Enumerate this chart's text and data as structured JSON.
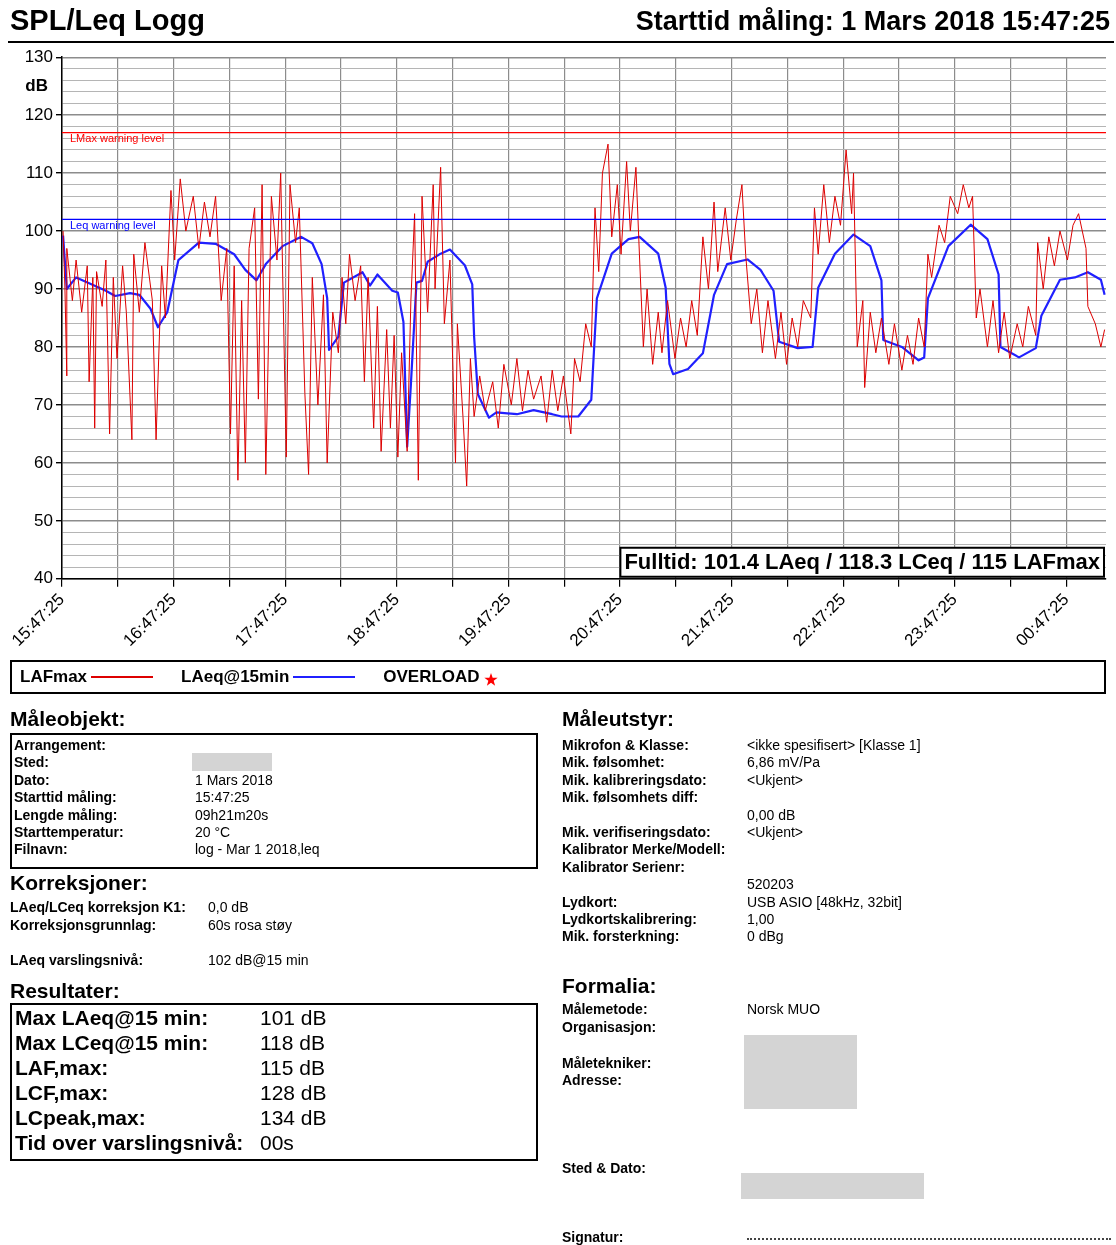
{
  "chart_data": {
    "type": "line",
    "title": "SPL/Leq Logg",
    "subtitle": "Starttid måling: 1 Mars 2018  15:47:25",
    "ylabel": "dB",
    "xlim": [
      "2018-03-01T15:47:25",
      "2018-03-02T01:08:45"
    ],
    "xticks": [
      {
        "value": "2018-03-01T15:47:25",
        "label": "15:47:25"
      },
      {
        "value": "2018-03-01T16:17:25",
        "label": null
      },
      {
        "value": "2018-03-01T16:47:25",
        "label": "16:47:25"
      },
      {
        "value": "2018-03-01T17:17:25",
        "label": null
      },
      {
        "value": "2018-03-01T17:47:25",
        "label": "17:47:25"
      },
      {
        "value": "2018-03-01T18:17:25",
        "label": null
      },
      {
        "value": "2018-03-01T18:47:25",
        "label": "18:47:25"
      },
      {
        "value": "2018-03-01T19:17:25",
        "label": null
      },
      {
        "value": "2018-03-01T19:47:25",
        "label": "19:47:25"
      },
      {
        "value": "2018-03-01T20:17:25",
        "label": null
      },
      {
        "value": "2018-03-01T20:47:25",
        "label": "20:47:25"
      },
      {
        "value": "2018-03-01T21:17:25",
        "label": null
      },
      {
        "value": "2018-03-01T21:47:25",
        "label": "21:47:25"
      },
      {
        "value": "2018-03-01T22:17:25",
        "label": null
      },
      {
        "value": "2018-03-01T22:47:25",
        "label": "22:47:25"
      },
      {
        "value": "2018-03-01T23:17:25",
        "label": null
      },
      {
        "value": "2018-03-01T23:47:25",
        "label": "23:47:25"
      },
      {
        "value": "2018-03-02T00:17:25",
        "label": null
      },
      {
        "value": "2018-03-02T00:47:25",
        "label": "00:47:25"
      }
    ],
    "ylim": [
      40,
      130
    ],
    "yticks": [
      40,
      {
        "value": 42,
        "label": null
      },
      {
        "value": 44,
        "label": null
      },
      {
        "value": 46,
        "label": null
      },
      {
        "value": 48,
        "label": null
      },
      50,
      {
        "value": 52,
        "label": null
      },
      {
        "value": 54,
        "label": null
      },
      {
        "value": 56,
        "label": null
      },
      {
        "value": 58,
        "label": null
      },
      60,
      {
        "value": 62,
        "label": null
      },
      {
        "value": 64,
        "label": null
      },
      {
        "value": 66,
        "label": null
      },
      {
        "value": 68,
        "label": null
      },
      70,
      {
        "value": 72,
        "label": null
      },
      {
        "value": 74,
        "label": null
      },
      {
        "value": 76,
        "label": null
      },
      {
        "value": 78,
        "label": null
      },
      80,
      {
        "value": 82,
        "label": null
      },
      {
        "value": 84,
        "label": null
      },
      {
        "value": 86,
        "label": null
      },
      {
        "value": 88,
        "label": null
      },
      90,
      {
        "value": 92,
        "label": null
      },
      {
        "value": 94,
        "label": null
      },
      {
        "value": 96,
        "label": null
      },
      {
        "value": 98,
        "label": null
      },
      100,
      {
        "value": 102,
        "label": null
      },
      {
        "value": 104,
        "label": null
      },
      {
        "value": 106,
        "label": null
      },
      {
        "value": 108,
        "label": null
      },
      110,
      {
        "value": 112,
        "label": null
      },
      {
        "value": 114,
        "label": null
      },
      {
        "value": 116,
        "label": null
      },
      {
        "value": 118,
        "label": null
      },
      120,
      {
        "value": 122,
        "label": null
      },
      {
        "value": 124,
        "label": null
      },
      {
        "value": 126,
        "label": null
      },
      {
        "value": 128,
        "label": null
      },
      130
    ],
    "grid": true,
    "legend": "bottom",
    "ref_lines": [
      {
        "axis": "y",
        "value": 117,
        "label": "LMax warning level",
        "color": "#ff0000"
      },
      {
        "axis": "y",
        "value": 102,
        "label": "Leq warning level",
        "color": "#0000ff"
      }
    ],
    "series": [
      {
        "name": "LAFmax",
        "color": "#dd0000",
        "x": [
          "2018-03-01T15:48",
          "2018-03-01T15:49",
          "2018-03-01T15:50",
          "2018-03-01T15:50",
          "2018-03-01T15:53",
          "2018-03-01T15:55",
          "2018-03-01T15:58",
          "2018-03-01T16:01",
          "2018-03-01T16:02",
          "2018-03-01T16:04",
          "2018-03-01T16:05",
          "2018-03-01T16:06",
          "2018-03-01T16:09",
          "2018-03-01T16:11",
          "2018-03-01T16:13",
          "2018-03-01T16:15",
          "2018-03-01T16:17",
          "2018-03-01T16:20",
          "2018-03-01T16:22",
          "2018-03-01T16:25",
          "2018-03-01T16:26",
          "2018-03-01T16:29",
          "2018-03-01T16:32",
          "2018-03-01T16:36",
          "2018-03-01T16:38",
          "2018-03-01T16:41",
          "2018-03-01T16:43",
          "2018-03-01T16:46",
          "2018-03-01T16:48",
          "2018-03-01T16:51",
          "2018-03-01T16:54",
          "2018-03-01T16:58",
          "2018-03-01T17:01",
          "2018-03-01T17:04",
          "2018-03-01T17:07",
          "2018-03-01T17:10",
          "2018-03-01T17:13",
          "2018-03-01T17:16",
          "2018-03-01T17:18",
          "2018-03-01T17:20",
          "2018-03-01T17:22",
          "2018-03-01T17:24",
          "2018-03-01T17:26",
          "2018-03-01T17:28",
          "2018-03-01T17:31",
          "2018-03-01T17:33",
          "2018-03-01T17:35",
          "2018-03-01T17:37",
          "2018-03-01T17:40",
          "2018-03-01T17:43",
          "2018-03-01T17:45",
          "2018-03-01T17:48",
          "2018-03-01T17:50",
          "2018-03-01T17:53",
          "2018-03-01T17:55",
          "2018-03-01T17:58",
          "2018-03-01T18:00",
          "2018-03-01T18:02",
          "2018-03-01T18:05",
          "2018-03-01T18:08",
          "2018-03-01T18:10",
          "2018-03-01T18:13",
          "2018-03-01T18:16",
          "2018-03-01T18:18",
          "2018-03-01T18:20",
          "2018-03-01T18:22",
          "2018-03-01T18:25",
          "2018-03-01T18:28",
          "2018-03-01T18:30",
          "2018-03-01T18:32",
          "2018-03-01T18:35",
          "2018-03-01T18:37",
          "2018-03-01T18:39",
          "2018-03-01T18:42",
          "2018-03-01T18:44",
          "2018-03-01T18:46",
          "2018-03-01T18:48",
          "2018-03-01T18:50",
          "2018-03-01T18:53",
          "2018-03-01T18:55",
          "2018-03-01T18:57",
          "2018-03-01T18:59",
          "2018-03-01T19:01",
          "2018-03-01T19:04",
          "2018-03-01T19:07",
          "2018-03-01T19:08",
          "2018-03-01T19:11",
          "2018-03-01T19:13",
          "2018-03-01T19:16",
          "2018-03-01T19:19",
          "2018-03-01T19:20",
          "2018-03-01T19:23",
          "2018-03-01T19:25",
          "2018-03-01T19:27",
          "2018-03-01T19:29",
          "2018-03-01T19:32",
          "2018-03-01T19:35",
          "2018-03-01T19:39",
          "2018-03-01T19:42",
          "2018-03-01T19:45",
          "2018-03-01T19:49",
          "2018-03-01T19:52",
          "2018-03-01T19:55",
          "2018-03-01T19:58",
          "2018-03-01T20:01",
          "2018-03-01T20:05",
          "2018-03-01T20:08",
          "2018-03-01T20:11",
          "2018-03-01T20:14",
          "2018-03-01T20:17",
          "2018-03-01T20:21",
          "2018-03-01T20:23",
          "2018-03-01T20:26",
          "2018-03-01T20:29",
          "2018-03-01T20:32",
          "2018-03-01T20:34",
          "2018-03-01T20:36",
          "2018-03-01T20:38",
          "2018-03-01T20:41",
          "2018-03-01T20:43",
          "2018-03-01T20:46",
          "2018-03-01T20:48",
          "2018-03-01T20:51",
          "2018-03-01T20:53",
          "2018-03-01T20:56",
          "2018-03-01T20:58",
          "2018-03-01T21:00",
          "2018-03-01T21:02",
          "2018-03-01T21:05",
          "2018-03-01T21:08",
          "2018-03-01T21:10",
          "2018-03-01T21:13",
          "2018-03-01T21:17",
          "2018-03-01T21:20",
          "2018-03-01T21:23",
          "2018-03-01T21:26",
          "2018-03-01T21:29",
          "2018-03-01T21:32",
          "2018-03-01T21:35",
          "2018-03-01T21:38",
          "2018-03-01T21:40",
          "2018-03-01T21:44",
          "2018-03-01T21:47",
          "2018-03-01T21:50",
          "2018-03-01T21:53",
          "2018-03-01T21:55",
          "2018-03-01T21:58",
          "2018-03-01T22:01",
          "2018-03-01T22:04",
          "2018-03-01T22:07",
          "2018-03-01T22:11",
          "2018-03-01T22:14",
          "2018-03-01T22:17",
          "2018-03-01T22:20",
          "2018-03-01T22:23",
          "2018-03-01T22:26",
          "2018-03-01T22:30",
          "2018-03-01T22:32",
          "2018-03-01T22:34",
          "2018-03-01T22:37",
          "2018-03-01T22:40",
          "2018-03-01T22:43",
          "2018-03-01T22:46",
          "2018-03-01T22:49",
          "2018-03-01T22:52",
          "2018-03-01T22:53",
          "2018-03-01T22:55",
          "2018-03-01T22:58",
          "2018-03-01T22:59",
          "2018-03-01T23:02",
          "2018-03-01T23:05",
          "2018-03-01T23:08",
          "2018-03-01T23:12",
          "2018-03-01T23:15",
          "2018-03-01T23:19",
          "2018-03-01T23:22",
          "2018-03-01T23:25",
          "2018-03-01T23:28",
          "2018-03-01T23:31",
          "2018-03-01T23:33",
          "2018-03-01T23:35",
          "2018-03-01T23:39",
          "2018-03-01T23:42",
          "2018-03-01T23:45",
          "2018-03-01T23:49",
          "2018-03-01T23:52",
          "2018-03-01T23:55",
          "2018-03-01T23:57",
          "2018-03-01T23:59",
          "2018-03-02T00:01",
          "2018-03-02T00:05",
          "2018-03-02T00:08",
          "2018-03-02T00:11",
          "2018-03-02T00:14",
          "2018-03-02T00:17",
          "2018-03-02T00:21",
          "2018-03-02T00:24",
          "2018-03-02T00:27",
          "2018-03-02T00:31",
          "2018-03-02T00:32",
          "2018-03-02T00:35",
          "2018-03-02T00:38",
          "2018-03-02T00:41",
          "2018-03-02T00:44",
          "2018-03-02T00:48",
          "2018-03-02T00:51",
          "2018-03-02T00:54",
          "2018-03-02T00:58",
          "2018-03-02T00:59",
          "2018-03-02T01:03",
          "2018-03-02T01:06",
          "2018-03-02T01:08"
        ],
        "values": [
          100,
          90,
          75,
          97,
          88,
          95,
          86,
          94,
          74,
          92,
          66,
          93,
          87,
          95,
          65,
          92,
          78,
          94,
          86,
          64,
          96,
          86,
          98,
          88,
          64,
          94,
          85,
          107,
          95,
          109,
          100,
          106,
          97,
          105,
          99,
          106,
          88,
          97,
          65,
          94,
          57,
          88,
          60,
          97,
          104,
          71,
          108,
          58,
          106,
          95,
          110,
          61,
          108,
          98,
          104,
          72,
          58,
          92,
          70,
          89,
          60,
          86,
          79,
          92,
          84,
          96,
          88,
          94,
          74,
          92,
          66,
          87,
          62,
          83,
          66,
          82,
          61,
          79,
          62,
          88,
          103,
          57,
          106,
          86,
          108,
          90,
          111,
          84,
          95,
          60,
          84,
          68,
          56,
          78,
          68,
          75,
          69,
          74,
          66,
          77,
          70,
          78,
          69,
          76,
          71,
          75,
          67,
          76,
          69,
          75,
          65,
          78,
          74,
          84,
          80,
          104,
          93,
          110,
          115,
          99,
          108,
          96,
          112,
          100,
          111,
          95,
          80,
          90,
          77,
          86,
          79,
          88,
          78,
          85,
          80,
          88,
          82,
          99,
          90,
          105,
          93,
          104,
          95,
          102,
          108,
          96,
          84,
          90,
          79,
          88,
          78,
          86,
          77,
          85,
          80,
          88,
          85,
          104,
          96,
          108,
          98,
          106,
          101,
          114,
          103,
          110,
          80,
          88,
          73,
          86,
          79,
          85,
          77,
          84,
          76,
          82,
          77,
          85,
          80,
          96,
          92,
          101,
          98,
          106,
          103,
          108,
          104,
          106,
          85,
          90,
          80,
          88,
          79,
          86,
          78,
          84,
          80,
          87,
          82,
          98,
          90,
          99,
          94,
          100,
          95,
          101,
          103,
          97,
          87,
          84,
          80,
          83
        ]
      },
      {
        "name": "LAeq@15min",
        "color": "#2020ff",
        "x": [
          "2018-03-01T15:48",
          "2018-03-01T15:50",
          "2018-03-01T15:55",
          "2018-03-01T16:02",
          "2018-03-01T16:11",
          "2018-03-01T16:16",
          "2018-03-01T16:24",
          "2018-03-01T16:29",
          "2018-03-01T16:35",
          "2018-03-01T16:39",
          "2018-03-01T16:44",
          "2018-03-01T16:50",
          "2018-03-01T17:01",
          "2018-03-01T17:10",
          "2018-03-01T17:20",
          "2018-03-01T17:26",
          "2018-03-01T17:32",
          "2018-03-01T17:37",
          "2018-03-01T17:46",
          "2018-03-01T17:56",
          "2018-03-01T18:02",
          "2018-03-01T18:07",
          "2018-03-01T18:10",
          "2018-03-01T18:11",
          "2018-03-01T18:16",
          "2018-03-01T18:19",
          "2018-03-01T18:29",
          "2018-03-01T18:33",
          "2018-03-01T18:37",
          "2018-03-01T18:45",
          "2018-03-01T18:48",
          "2018-03-01T18:51",
          "2018-03-01T18:53",
          "2018-03-01T18:55",
          "2018-03-01T18:58",
          "2018-03-01T19:01",
          "2018-03-01T19:04",
          "2018-03-01T19:11",
          "2018-03-01T19:16",
          "2018-03-01T19:24",
          "2018-03-01T19:28",
          "2018-03-01T19:29",
          "2018-03-01T19:31",
          "2018-03-01T19:37",
          "2018-03-01T19:41",
          "2018-03-01T19:52",
          "2018-03-01T20:01",
          "2018-03-01T20:11",
          "2018-03-01T20:16",
          "2018-03-01T20:25",
          "2018-03-01T20:32",
          "2018-03-01T20:35",
          "2018-03-01T20:43",
          "2018-03-01T20:52",
          "2018-03-01T20:58",
          "2018-03-01T21:08",
          "2018-03-01T21:12",
          "2018-03-01T21:14",
          "2018-03-01T21:16",
          "2018-03-01T21:24",
          "2018-03-01T21:32",
          "2018-03-01T21:38",
          "2018-03-01T21:45",
          "2018-03-01T21:56",
          "2018-03-01T22:03",
          "2018-03-01T22:10",
          "2018-03-01T22:13",
          "2018-03-01T22:23",
          "2018-03-01T22:31",
          "2018-03-01T22:34",
          "2018-03-01T22:43",
          "2018-03-01T22:53",
          "2018-03-01T23:02",
          "2018-03-01T23:08",
          "2018-03-01T23:09",
          "2018-03-01T23:19",
          "2018-03-01T23:28",
          "2018-03-01T23:31",
          "2018-03-01T23:33",
          "2018-03-01T23:44",
          "2018-03-01T23:56",
          "2018-03-02T00:05",
          "2018-03-02T00:11",
          "2018-03-02T00:12",
          "2018-03-02T00:22",
          "2018-03-02T00:31",
          "2018-03-02T00:34",
          "2018-03-02T00:44",
          "2018-03-02T00:52",
          "2018-03-02T00:59",
          "2018-03-02T01:06",
          "2018-03-02T01:08"
        ],
        "values": [
          99.2,
          90,
          92,
          91,
          89.7,
          88.8,
          89.3,
          89,
          86.6,
          83.4,
          86,
          95,
          98,
          97.8,
          96,
          93.3,
          91.5,
          94.3,
          97.4,
          99,
          97.9,
          94.3,
          88.4,
          79.5,
          81.8,
          91.1,
          92.9,
          90.6,
          92.5,
          89.7,
          89.4,
          84.3,
          62.8,
          73.5,
          91.1,
          91.4,
          94.7,
          96.1,
          96.8,
          94.1,
          90.8,
          81.8,
          71.9,
          67.8,
          68.7,
          68.4,
          69.1,
          68.4,
          68,
          68,
          70.9,
          88.4,
          96.1,
          98.6,
          99,
          96.1,
          90.2,
          77.1,
          75.3,
          76.2,
          78.9,
          89,
          94.3,
          95.1,
          93.3,
          89.7,
          80.9,
          79.8,
          80,
          90.2,
          96.1,
          99.4,
          97.4,
          91.5,
          81.2,
          80,
          77.7,
          78.2,
          88.4,
          97.4,
          101.1,
          98.6,
          92.5,
          80,
          78.2,
          79.8,
          85.4,
          91.6,
          92,
          92.9,
          91.6,
          89
        ]
      },
      {
        "name": "OVERLOAD",
        "type": "scatter",
        "color": "#ff0000",
        "marker": "star"
      }
    ],
    "annotations": [
      "Fulltid: 101.4 LAeq / 118.3 LCeq / 115 LAFmax",
      "Måleobjekt:",
      "Arrangement:",
      "Sted:",
      "Dato:\t1 Mars 2018",
      "Starttid måling:\t15:47:25",
      "Lengde måling:\t09h21m20s",
      "Starttemperatur:\t20 °C",
      "Filnavn:\tlog - Mar 1 2018,leq",
      "Korreksjoner:",
      "LAeq/LCeq korreksjon K1:\t0,0 dB",
      "Korreksjonsgrunnlag:\t60s rosa støy",
      "LAeq varslingsnivå:\t102 dB@15 min",
      "Resultater:",
      "Max LAeq@15 min:\t101 dB",
      "Max LCeq@15 min:\t118 dB",
      "LAF,max:\t115 dB",
      "LCF,max:\t128 dB",
      "LCpeak,max:\t134 dB",
      "Tid over varslingsnivå:\t00s",
      "Måleutstyr:",
      "Mikrofon & Klasse:\t<ikke spesifisert> [Klasse 1]",
      "Mik. følsomhet:\t6,86 mV/Pa",
      "Mik. kalibreringsdato:\t<Ukjent>",
      "Mik. følsomhets diff:",
      "\t0,00 dB",
      "Mik. verifiseringsdato:\t<Ukjent>",
      "Kalibrator Merke/Modell:",
      "Kalibrator Serienr:",
      "\t520203",
      "Lydkort:\tUSB ASIO [48kHz, 32bit]",
      "Lydkortskalibrering:\t1,00",
      "Mik. forsterkning:\t0 dBg",
      "Formalia:",
      "Målemetode:\tNorsk MUO",
      "Organisasjon:",
      "Måletekniker:",
      "Adresse:",
      "Sted & Dato:",
      "Signatur:"
    ]
  }
}
